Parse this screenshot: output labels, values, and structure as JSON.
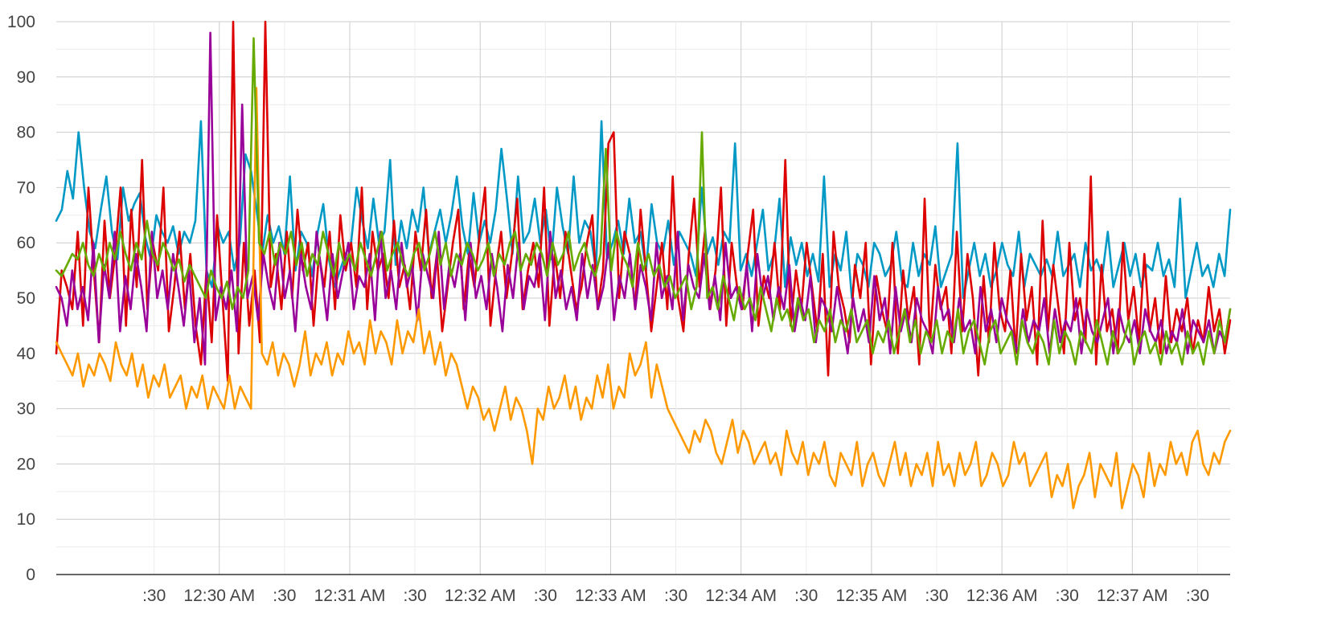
{
  "chart_data": {
    "type": "line",
    "ylim": [
      0,
      100
    ],
    "y_ticks": [
      0,
      10,
      20,
      30,
      40,
      50,
      60,
      70,
      80,
      90,
      100
    ],
    "y_tick_labels": [
      "0",
      "10",
      "20",
      "30",
      "40",
      "50",
      "60",
      "70",
      "80",
      "90",
      "100"
    ],
    "x_range_seconds": [
      -75,
      465
    ],
    "x_ticks": [
      {
        "t": -30,
        "label": ":30"
      },
      {
        "t": 0,
        "label": "12:30 AM"
      },
      {
        "t": 30,
        "label": ":30"
      },
      {
        "t": 60,
        "label": "12:31 AM"
      },
      {
        "t": 90,
        "label": ":30"
      },
      {
        "t": 120,
        "label": "12:32 AM"
      },
      {
        "t": 150,
        "label": ":30"
      },
      {
        "t": 180,
        "label": "12:33 AM"
      },
      {
        "t": 210,
        "label": ":30"
      },
      {
        "t": 240,
        "label": "12:34 AM"
      },
      {
        "t": 270,
        "label": ":30"
      },
      {
        "t": 300,
        "label": "12:35 AM"
      },
      {
        "t": 330,
        "label": ":30"
      },
      {
        "t": 360,
        "label": "12:36 AM"
      },
      {
        "t": 390,
        "label": ":30"
      },
      {
        "t": 420,
        "label": "12:37 AM"
      },
      {
        "t": 450,
        "label": ":30"
      }
    ],
    "grid": true,
    "legend": "none",
    "series": [
      {
        "color": "#0099c6",
        "values": [
          64,
          66,
          73,
          68,
          80,
          70,
          62,
          59,
          66,
          72,
          62,
          57,
          70,
          64,
          67,
          69,
          61,
          57,
          65,
          62,
          60,
          63,
          58,
          62,
          60,
          64,
          82,
          55,
          52,
          63,
          60,
          62,
          55,
          60,
          76,
          73,
          66,
          58,
          65,
          60,
          63,
          58,
          72,
          55,
          62,
          60,
          54,
          62,
          67,
          57,
          52,
          55,
          58,
          60,
          70,
          64,
          59,
          68,
          60,
          62,
          75,
          56,
          64,
          59,
          66,
          62,
          70,
          58,
          62,
          66,
          60,
          65,
          72,
          63,
          58,
          69,
          60,
          64,
          60,
          66,
          77,
          68,
          58,
          72,
          60,
          62,
          68,
          60,
          66,
          57,
          70,
          63,
          58,
          72,
          60,
          64,
          62,
          55,
          82,
          57,
          60,
          64,
          58,
          68,
          60,
          62,
          55,
          67,
          60,
          58,
          64,
          56,
          62,
          60,
          58,
          54,
          70,
          58,
          61,
          56,
          62,
          60,
          78,
          55,
          58,
          54,
          60,
          66,
          55,
          58,
          68,
          52,
          61,
          56,
          60,
          54,
          58,
          53,
          72,
          52,
          58,
          55,
          62,
          50,
          58,
          56,
          52,
          60,
          58,
          54,
          56,
          62,
          53,
          52,
          60,
          54,
          58,
          56,
          63,
          52,
          55,
          58,
          78,
          50,
          55,
          60,
          54,
          58,
          52,
          55,
          60,
          56,
          54,
          62,
          52,
          58,
          56,
          54,
          57,
          54,
          62,
          54,
          56,
          58,
          52,
          60,
          55,
          57,
          54,
          62,
          52,
          56,
          60,
          54,
          58,
          52,
          56,
          55,
          60,
          54,
          57,
          52,
          68,
          50,
          55,
          60,
          54,
          56,
          52,
          58,
          54,
          66
        ]
      },
      {
        "color": "#dc0000",
        "values": [
          40,
          55,
          52,
          48,
          62,
          45,
          70,
          55,
          42,
          64,
          50,
          58,
          70,
          45,
          66,
          52,
          75,
          48,
          60,
          55,
          70,
          44,
          52,
          62,
          48,
          58,
          45,
          38,
          55,
          42,
          65,
          50,
          35,
          100,
          40,
          60,
          45,
          55,
          42,
          100,
          52,
          58,
          48,
          62,
          50,
          66,
          55,
          60,
          45,
          58,
          52,
          62,
          48,
          65,
          55,
          60,
          52,
          70,
          48,
          62,
          55,
          58,
          50,
          64,
          52,
          56,
          48,
          62,
          55,
          66,
          50,
          58,
          44,
          52,
          60,
          66,
          48,
          58,
          52,
          62,
          70,
          45,
          55,
          62,
          50,
          58,
          68,
          48,
          55,
          60,
          52,
          70,
          45,
          58,
          50,
          62,
          55,
          48,
          52,
          60,
          65,
          48,
          55,
          78,
          80,
          50,
          62,
          58,
          48,
          66,
          55,
          44,
          52,
          60,
          48,
          72,
          50,
          44,
          58,
          68,
          52,
          62,
          48,
          55,
          70,
          45,
          60,
          52,
          48,
          58,
          66,
          45,
          54,
          50,
          60,
          48,
          75,
          45,
          55,
          48,
          60,
          52,
          44,
          58,
          36,
          62,
          52,
          48,
          42,
          56,
          50,
          60,
          38,
          54,
          48,
          44,
          60,
          40,
          55,
          46,
          52,
          38,
          68,
          42,
          56,
          48,
          52,
          40,
          62,
          44,
          58,
          50,
          36,
          54,
          42,
          60,
          48,
          44,
          55,
          40,
          58,
          46,
          52,
          38,
          64,
          44,
          56,
          48,
          40,
          60,
          46,
          50,
          42,
          72,
          38,
          56,
          44,
          48,
          40,
          60,
          46,
          52,
          42,
          58,
          44,
          50,
          40,
          54,
          42,
          48,
          44,
          50,
          40,
          46,
          42,
          52,
          44,
          48,
          40,
          46
        ]
      },
      {
        "color": "#990099",
        "values": [
          52,
          50,
          45,
          55,
          48,
          52,
          46,
          60,
          42,
          56,
          50,
          62,
          44,
          54,
          48,
          58,
          52,
          44,
          62,
          50,
          55,
          48,
          58,
          52,
          45,
          55,
          42,
          50,
          38,
          98,
          46,
          52,
          48,
          55,
          44,
          85,
          50,
          54,
          46,
          58,
          52,
          48,
          60,
          50,
          55,
          44,
          58,
          52,
          48,
          62,
          54,
          46,
          58,
          50,
          55,
          60,
          48,
          54,
          52,
          58,
          46,
          62,
          50,
          55,
          48,
          60,
          52,
          56,
          46,
          58,
          54,
          50,
          62,
          48,
          56,
          52,
          58,
          46,
          60,
          50,
          54,
          48,
          58,
          52,
          44,
          56,
          50,
          60,
          48,
          54,
          52,
          58,
          46,
          62,
          50,
          55,
          48,
          52,
          46,
          58,
          50,
          56,
          48,
          52,
          60,
          46,
          54,
          50,
          58,
          48,
          56,
          52,
          46,
          60,
          50,
          54,
          48,
          62,
          46,
          56,
          52,
          50,
          58,
          48,
          54,
          46,
          60,
          50,
          52,
          48,
          56,
          44,
          58,
          50,
          54,
          46,
          52,
          48,
          56,
          44,
          50,
          46,
          54,
          42,
          50,
          48,
          44,
          52,
          46,
          40,
          50,
          44,
          48,
          42,
          54,
          46,
          50,
          40,
          52,
          44,
          48,
          42,
          50,
          46,
          44,
          40,
          52,
          46,
          48,
          42,
          50,
          44,
          46,
          40,
          52,
          44,
          48,
          42,
          50,
          46,
          44,
          40,
          48,
          42,
          46,
          44,
          50,
          40,
          48,
          42,
          46,
          44,
          50,
          40,
          48,
          44,
          42,
          46,
          50,
          40,
          48,
          44,
          42,
          46,
          40,
          48,
          44,
          42,
          46,
          40,
          44,
          42,
          48,
          40,
          46,
          44,
          42,
          46,
          40,
          44,
          42,
          48
        ]
      },
      {
        "color": "#ff9900",
        "values": [
          42,
          40,
          38,
          36,
          40,
          34,
          38,
          36,
          40,
          38,
          35,
          42,
          38,
          36,
          40,
          34,
          38,
          32,
          36,
          34,
          38,
          32,
          34,
          36,
          30,
          34,
          32,
          36,
          30,
          34,
          32,
          30,
          36,
          30,
          34,
          32,
          30,
          88,
          40,
          38,
          42,
          36,
          40,
          38,
          34,
          38,
          44,
          36,
          40,
          38,
          42,
          36,
          40,
          38,
          44,
          40,
          42,
          38,
          46,
          40,
          44,
          42,
          38,
          46,
          40,
          44,
          42,
          48,
          40,
          44,
          38,
          42,
          36,
          40,
          38,
          34,
          30,
          34,
          32,
          28,
          30,
          26,
          30,
          34,
          28,
          32,
          30,
          26,
          20,
          30,
          28,
          34,
          30,
          32,
          36,
          30,
          34,
          28,
          32,
          30,
          36,
          32,
          38,
          30,
          34,
          32,
          40,
          36,
          38,
          42,
          32,
          38,
          34,
          30,
          28,
          26,
          24,
          22,
          26,
          24,
          28,
          26,
          22,
          20,
          24,
          28,
          22,
          26,
          24,
          20,
          22,
          24,
          20,
          22,
          18,
          26,
          22,
          20,
          24,
          18,
          22,
          20,
          24,
          18,
          16,
          22,
          20,
          18,
          24,
          16,
          20,
          22,
          18,
          16,
          20,
          24,
          18,
          22,
          16,
          20,
          18,
          22,
          16,
          24,
          18,
          20,
          16,
          22,
          18,
          20,
          24,
          16,
          18,
          22,
          20,
          16,
          18,
          24,
          20,
          22,
          16,
          18,
          20,
          22,
          14,
          18,
          16,
          20,
          12,
          16,
          18,
          22,
          14,
          20,
          18,
          16,
          22,
          12,
          16,
          20,
          18,
          14,
          22,
          16,
          20,
          18,
          24,
          20,
          22,
          18,
          24,
          26,
          20,
          18,
          22,
          20,
          24,
          26
        ]
      },
      {
        "color": "#66aa00",
        "values": [
          55,
          54,
          56,
          58,
          57,
          60,
          56,
          54,
          58,
          55,
          60,
          57,
          62,
          58,
          55,
          60,
          57,
          64,
          58,
          56,
          60,
          58,
          55,
          57,
          53,
          56,
          54,
          52,
          50,
          55,
          52,
          50,
          53,
          48,
          52,
          50,
          55,
          97,
          60,
          58,
          62,
          56,
          60,
          58,
          62,
          56,
          60,
          54,
          58,
          56,
          62,
          58,
          54,
          60,
          56,
          58,
          55,
          60,
          57,
          54,
          58,
          62,
          55,
          58,
          60,
          56,
          54,
          58,
          60,
          55,
          58,
          62,
          56,
          60,
          54,
          58,
          56,
          60,
          58,
          55,
          57,
          60,
          54,
          58,
          56,
          60,
          62,
          55,
          58,
          56,
          60,
          58,
          54,
          60,
          56,
          58,
          62,
          55,
          58,
          60,
          56,
          54,
          58,
          77,
          55,
          62,
          58,
          56,
          52,
          60,
          55,
          58,
          54,
          56,
          52,
          54,
          50,
          52,
          54,
          48,
          52,
          80,
          50,
          52,
          48,
          54,
          50,
          46,
          52,
          48,
          50,
          46,
          52,
          48,
          44,
          50,
          46,
          48,
          44,
          50,
          46,
          48,
          42,
          46,
          44,
          48,
          42,
          46,
          44,
          48,
          42,
          44,
          46,
          40,
          44,
          42,
          46,
          40,
          44,
          48,
          42,
          46,
          40,
          44,
          42,
          46,
          40,
          44,
          42,
          48,
          40,
          44,
          46,
          42,
          38,
          44,
          46,
          40,
          42,
          44,
          38,
          46,
          42,
          40,
          44,
          42,
          38,
          46,
          40,
          44,
          42,
          38,
          44,
          42,
          40,
          46,
          42,
          38,
          44,
          40,
          42,
          46,
          38,
          42,
          44,
          40,
          42,
          38,
          44,
          40,
          42,
          38,
          44,
          40,
          42,
          38,
          44,
          40,
          46,
          42,
          48
        ]
      }
    ]
  }
}
